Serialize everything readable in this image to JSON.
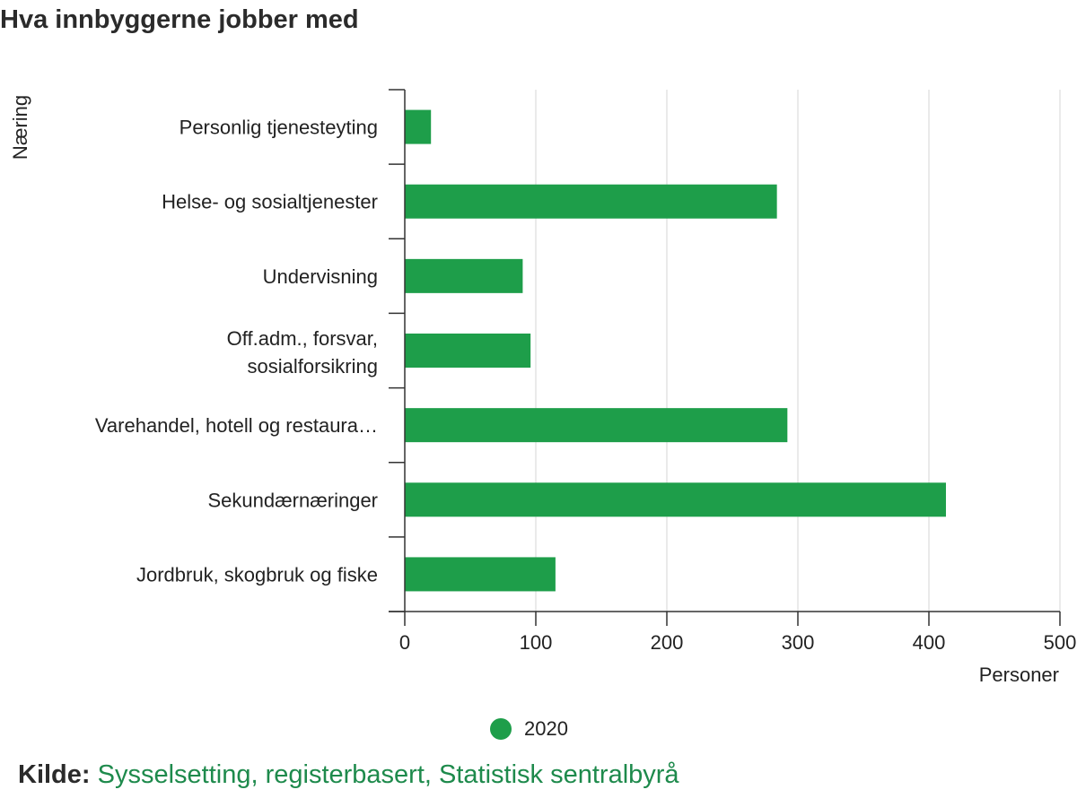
{
  "page": {
    "title": "Hva innbyggerne jobber med"
  },
  "chart_data": {
    "type": "bar",
    "orientation": "horizontal",
    "categories": [
      "Personlig tjenesteyting",
      "Helse- og sosialtjenester",
      "Undervisning",
      "Off.adm., forsvar, sosialforsikring",
      "Varehandel, hotell og restaura…",
      "Sekundærnæringer",
      "Jordbruk, skogbruk og fiske"
    ],
    "series": [
      {
        "name": "2020",
        "color": "#1e9e4a",
        "values": [
          20,
          284,
          90,
          96,
          292,
          413,
          115
        ]
      }
    ],
    "xlabel": "Personer",
    "ylabel": "Næring",
    "xlim": [
      0,
      500
    ],
    "xticks": [
      "0",
      "100",
      "200",
      "300",
      "400",
      "500"
    ],
    "grid": "vertical",
    "legend": "bottom-center"
  },
  "source": {
    "label": "Kilde:",
    "text": "Sysselsetting, registerbasert, Statistisk sentralbyrå",
    "color": "#1e8a4c"
  }
}
